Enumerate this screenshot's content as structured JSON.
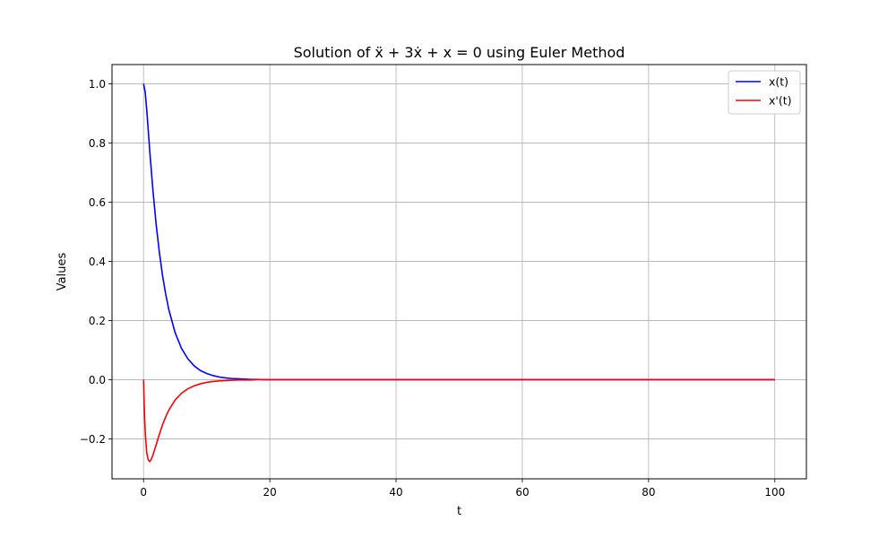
{
  "chart_data": {
    "type": "line",
    "title": "Solution of ẍ + 3ẋ + x = 0 using Euler Method",
    "xlabel": "t",
    "ylabel": "Values",
    "xlim": [
      -5,
      105
    ],
    "ylim": [
      -0.335,
      1.065
    ],
    "xticks": [
      0,
      20,
      40,
      60,
      80,
      100
    ],
    "yticks": [
      -0.2,
      0.0,
      0.2,
      0.4,
      0.6,
      0.8,
      1.0
    ],
    "xtick_labels": [
      "0",
      "20",
      "40",
      "60",
      "80",
      "100"
    ],
    "ytick_labels": [
      "−0.2",
      "0.0",
      "0.2",
      "0.4",
      "0.6",
      "0.8",
      "1.0"
    ],
    "grid": true,
    "legend_position": "top-right",
    "series": [
      {
        "name": "x(t)",
        "color": "#0000ff",
        "x": [
          0,
          0.25,
          0.5,
          0.75,
          1,
          1.5,
          2,
          2.5,
          3,
          3.5,
          4,
          5,
          6,
          7,
          8,
          9,
          10,
          11,
          12,
          13,
          14,
          15,
          16,
          17,
          18,
          19,
          20,
          25,
          30,
          40,
          50,
          60,
          70,
          80,
          90,
          100
        ],
        "values": [
          1.0,
          0.973,
          0.913,
          0.841,
          0.768,
          0.636,
          0.524,
          0.431,
          0.353,
          0.29,
          0.237,
          0.159,
          0.106,
          0.071,
          0.047,
          0.031,
          0.021,
          0.014,
          0.009,
          0.006,
          0.004,
          0.003,
          0.002,
          0.001,
          0.001,
          0.0,
          0.0,
          0.0,
          0.0,
          0.0,
          0.0,
          0.0,
          0.0,
          0.0,
          0.0,
          0.0
        ]
      },
      {
        "name": "x'(t)",
        "color": "#ff0000",
        "x": [
          0,
          0.1,
          0.2,
          0.3,
          0.5,
          0.7,
          0.9,
          1.0,
          1.2,
          1.5,
          2,
          2.5,
          3,
          3.5,
          4,
          5,
          6,
          7,
          8,
          9,
          10,
          11,
          12,
          13,
          14,
          15,
          16,
          17,
          18,
          19,
          20,
          25,
          30,
          40,
          50,
          60,
          70,
          80,
          90,
          100
        ],
        "values": [
          0.0,
          -0.085,
          -0.147,
          -0.192,
          -0.245,
          -0.268,
          -0.276,
          -0.276,
          -0.27,
          -0.254,
          -0.22,
          -0.185,
          -0.153,
          -0.126,
          -0.103,
          -0.069,
          -0.046,
          -0.031,
          -0.021,
          -0.014,
          -0.009,
          -0.006,
          -0.004,
          -0.003,
          -0.002,
          -0.001,
          -0.001,
          -0.001,
          0.0,
          0.0,
          0.0,
          0.0,
          0.0,
          0.0,
          0.0,
          0.0,
          0.0,
          0.0,
          0.0,
          0.0
        ]
      }
    ]
  }
}
